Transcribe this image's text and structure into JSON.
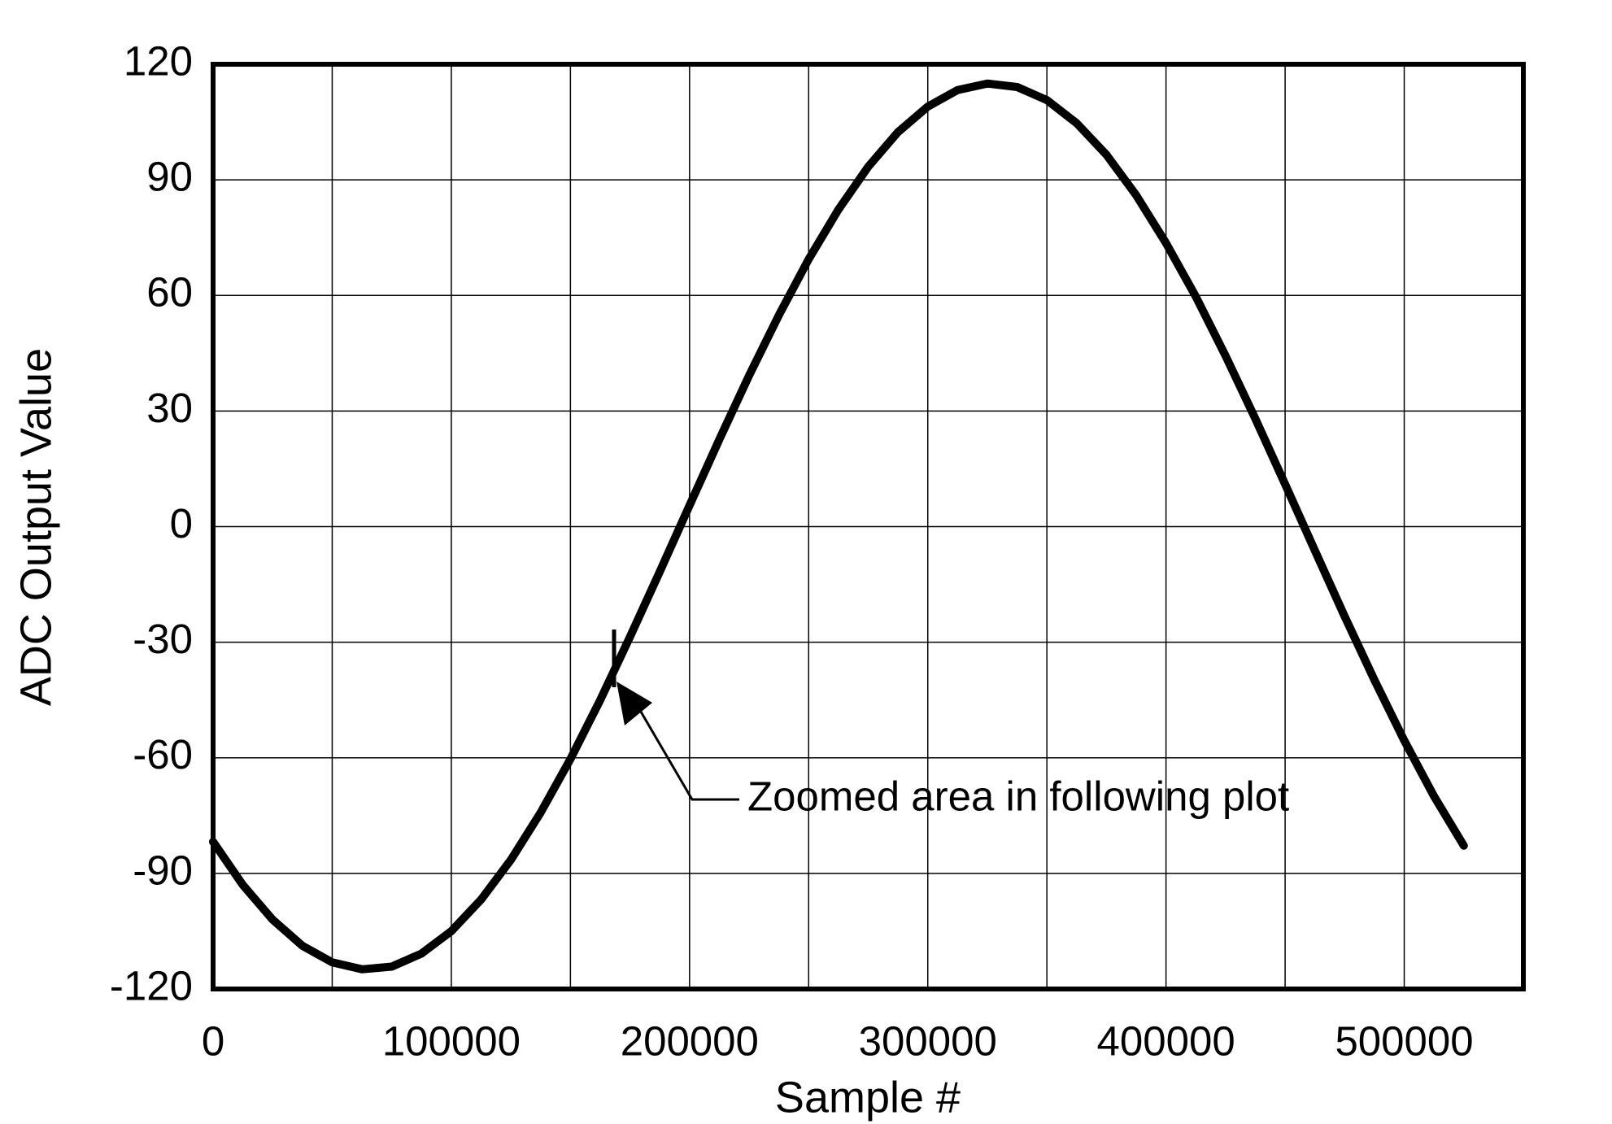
{
  "chart_data": {
    "type": "line",
    "x_label": "Sample #",
    "y_label": "ADC Output Value",
    "annotation": "Zoomed area in following plot",
    "x": [
      0,
      12500,
      25000,
      37500,
      50000,
      62500,
      75000,
      87500,
      100000,
      112500,
      125000,
      137500,
      150000,
      162500,
      175000,
      187500,
      200000,
      212500,
      225000,
      237500,
      250000,
      262500,
      275000,
      287500,
      300000,
      312500,
      325000,
      337500,
      350000,
      362500,
      375000,
      387500,
      400000,
      412500,
      425000,
      437500,
      450000,
      462500,
      475000,
      487500,
      500000,
      512500,
      525000
    ],
    "series": [
      {
        "color": "#000000",
        "values": [
          -81.8,
          -93.0,
          -102.0,
          -108.8,
          -113.1,
          -114.9,
          -114.2,
          -110.8,
          -105.0,
          -96.8,
          -86.5,
          -74.2,
          -60.3,
          -45.0,
          -28.6,
          -11.7,
          5.5,
          22.6,
          39.2,
          54.9,
          69.4,
          82.3,
          93.4,
          102.4,
          109.0,
          113.3,
          115.0,
          114.1,
          110.7,
          104.7,
          96.5,
          86.0,
          73.6,
          59.7,
          44.3,
          28.0,
          11.0,
          -6.2,
          -23.3,
          -39.8,
          -55.5,
          -70.0,
          -82.8
        ]
      }
    ],
    "xlim": [
      0,
      550000
    ],
    "xticks": [
      0,
      100000,
      200000,
      300000,
      400000,
      500000
    ],
    "x_minor_ticks": [
      50000,
      150000,
      250000,
      350000,
      450000
    ],
    "ylim": [
      -120,
      120
    ],
    "yticks": [
      -120,
      -90,
      -60,
      -30,
      0,
      30,
      60,
      90,
      120
    ],
    "grid": true
  }
}
